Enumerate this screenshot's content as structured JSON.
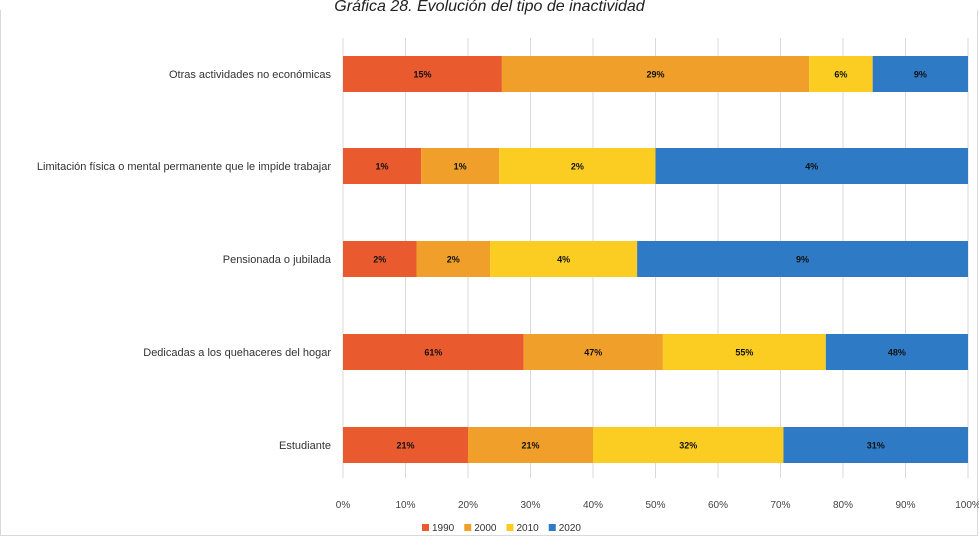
{
  "chart_data": {
    "type": "bar",
    "orientation": "horizontal",
    "stacking": "percent",
    "title": "Gráfica 28. Evolución del tipo de inactividad",
    "categories": [
      "Otras actividades no económicas",
      "Limitación física o mental  permanente que le impide trabajar",
      "Pensionada o jubilada",
      "Dedicadas a los quehaceres del hogar",
      "Estudiante"
    ],
    "series": [
      {
        "name": "1990",
        "color": "#e95a2f",
        "values": [
          15,
          1,
          2,
          61,
          21
        ],
        "labels": [
          "15%",
          "1%",
          "2%",
          "61%",
          "21%"
        ]
      },
      {
        "name": "2000",
        "color": "#f0a02a",
        "values": [
          29,
          1,
          2,
          47,
          21
        ],
        "labels": [
          "29%",
          "1%",
          "2%",
          "47%",
          "21%"
        ]
      },
      {
        "name": "2010",
        "color": "#fbcd23",
        "values": [
          6,
          2,
          4,
          55,
          32
        ],
        "labels": [
          "6%",
          "2%",
          "4%",
          "55%",
          "32%"
        ]
      },
      {
        "name": "2020",
        "color": "#2e7ac4",
        "values": [
          9,
          4,
          9,
          48,
          31
        ],
        "labels": [
          "9%",
          "4%",
          "9%",
          "48%",
          "31%"
        ]
      }
    ],
    "x_ticks": [
      "0%",
      "10%",
      "20%",
      "30%",
      "40%",
      "50%",
      "60%",
      "70%",
      "80%",
      "90%",
      "100%"
    ],
    "xlim": [
      0,
      100
    ],
    "grid": "vertical",
    "legend": "bottom"
  }
}
